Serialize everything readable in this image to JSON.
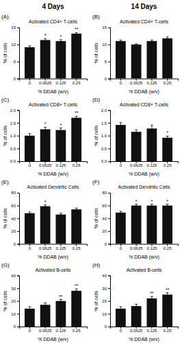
{
  "col_titles": [
    "4 Days",
    "14 Days"
  ],
  "chart_data": [
    {
      "type": "bar",
      "panel_label": "(A)",
      "title": "Activated CD4+ T-cells",
      "categories": [
        "0",
        "0.0625",
        "0.125",
        "0.25"
      ],
      "values": [
        9.2,
        11.3,
        11.0,
        13.2
      ],
      "errors": [
        0.4,
        0.4,
        0.4,
        0.3
      ],
      "annotations": [
        null,
        "*",
        "*",
        "**"
      ],
      "xlabel": "% DDAB  (w/v)",
      "ylabel": "% of cells",
      "color": "#111111",
      "ylim": [
        0,
        15
      ],
      "yticks": [
        0,
        5,
        10,
        15
      ]
    },
    {
      "type": "bar",
      "panel_label": "(B)",
      "title": "Activated CD4+ T-cells",
      "categories": [
        "0",
        "0.0625",
        "0.125",
        "0.25"
      ],
      "values": [
        11.0,
        10.0,
        11.0,
        11.8
      ],
      "errors": [
        0.3,
        0.2,
        0.3,
        0.4
      ],
      "xlabel": "% DDAB  (w/v)",
      "ylabel": "% of cells",
      "color": "#111111",
      "ylim": [
        0,
        15
      ],
      "yticks": [
        0,
        5,
        10,
        15
      ]
    },
    {
      "type": "bar",
      "panel_label": "(C)",
      "title": "Activated CD8+ T-cells",
      "categories": [
        "0",
        "0.0625",
        "0.125",
        "0.25"
      ],
      "values": [
        1.0,
        1.25,
        1.22,
        1.7
      ],
      "errors": [
        0.08,
        0.08,
        0.08,
        0.06
      ],
      "annotations": [
        null,
        "*",
        "*",
        "**"
      ],
      "xlabel": "% DDAB  (w/v)",
      "ylabel": "% of cells",
      "color": "#111111",
      "ylim": [
        0.0,
        2.0
      ],
      "yticks": [
        {
          "value": 0.0,
          "label": "0.0"
        },
        0.5,
        {
          "value": 1.0,
          "label": "1.0"
        },
        1.5,
        {
          "value": 2.0,
          "label": "2.0"
        }
      ]
    },
    {
      "type": "bar",
      "panel_label": "(D)",
      "title": "Activated CD8+ T-cells",
      "categories": [
        "0",
        "0.0625",
        "0.125",
        "0.25"
      ],
      "values": [
        1.42,
        1.15,
        1.28,
        0.92
      ],
      "errors": [
        0.09,
        0.08,
        0.13,
        0.06
      ],
      "annotations": [
        null,
        null,
        null,
        "*"
      ],
      "xlabel": "% DDAB  (w/v)",
      "ylabel": "% of cells",
      "color": "#111111",
      "ylim": [
        0.0,
        2.0
      ],
      "yticks": [
        {
          "value": 0.0,
          "label": "0.0"
        },
        0.5,
        {
          "value": 1.0,
          "label": "1.0"
        },
        1.5,
        {
          "value": 2.0,
          "label": "2.0"
        }
      ]
    },
    {
      "type": "bar",
      "panel_label": "(E)",
      "title": "Activated Dendritic Cells",
      "categories": [
        "0",
        "0.0625",
        "0.125",
        "0.25"
      ],
      "values": [
        48,
        59,
        46,
        54
      ],
      "errors": [
        2,
        2,
        2,
        2
      ],
      "annotations": [
        null,
        "*",
        null,
        null
      ],
      "xlabel": "% DDAB  (w/v)",
      "ylabel": "% of cells",
      "color": "#111111",
      "ylim": [
        0,
        80
      ],
      "yticks": [
        0,
        20,
        40,
        60,
        80
      ]
    },
    {
      "type": "bar",
      "panel_label": "(F)",
      "title": "Activated Dendritic Cells",
      "categories": [
        "0",
        "0.0625",
        "0.125",
        "0.25"
      ],
      "values": [
        49,
        60,
        60,
        60
      ],
      "errors": [
        2,
        2,
        2,
        2
      ],
      "annotations": [
        null,
        "*",
        "*",
        "*"
      ],
      "xlabel": "% DDAB  (w/v)",
      "ylabel": "% of cells",
      "color": "#111111",
      "ylim": [
        0,
        80
      ],
      "yticks": [
        0,
        20,
        40,
        60,
        80
      ]
    },
    {
      "type": "bar",
      "panel_label": "(G)",
      "title": "Activated B-cells",
      "categories": [
        "0",
        "0.0625",
        "0.125",
        "0.25"
      ],
      "values": [
        14,
        17,
        20,
        28
      ],
      "errors": [
        1.5,
        1.5,
        1.2,
        1.5
      ],
      "annotations": [
        null,
        null,
        "**",
        "**"
      ],
      "xlabel": "% DDAB  (w/v)",
      "ylabel": "% of cells",
      "color": "#111111",
      "ylim": [
        0,
        40
      ],
      "yticks": [
        0,
        10,
        20,
        30,
        40
      ]
    },
    {
      "type": "bar",
      "panel_label": "(H)",
      "title": "Activated B-cells",
      "categories": [
        "0",
        "0.0625",
        "0.125",
        "0.25"
      ],
      "values": [
        14,
        16,
        22,
        25
      ],
      "errors": [
        1.5,
        1.5,
        1.5,
        1.5
      ],
      "annotations": [
        null,
        null,
        "**",
        "**"
      ],
      "xlabel": "% DDAB  (w/v)",
      "ylabel": "% of cells",
      "color": "#111111",
      "ylim": [
        0,
        40
      ],
      "yticks": [
        0,
        10,
        20,
        30,
        40
      ]
    }
  ]
}
